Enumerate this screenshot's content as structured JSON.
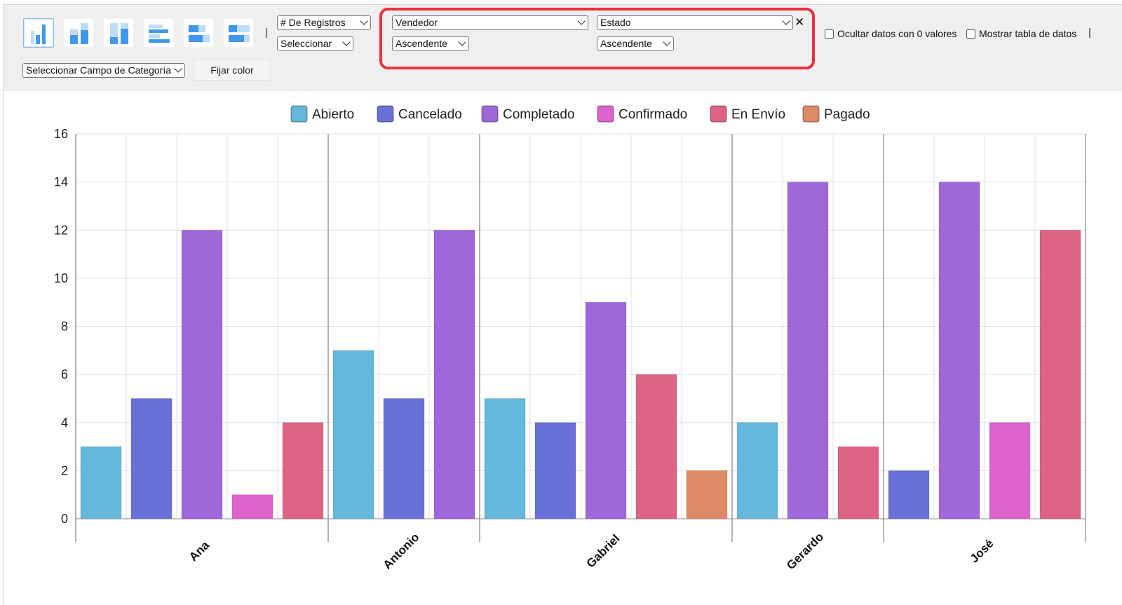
{
  "toolbar": {
    "chart_type_buttons": [
      {
        "icon": "vertical-bar-chart-icon",
        "active": true
      },
      {
        "icon": "stacked-column-chart-icon",
        "active": false
      },
      {
        "icon": "percent-stacked-column-chart-icon",
        "active": false
      },
      {
        "icon": "horizontal-bar-chart-icon",
        "active": false
      },
      {
        "icon": "stacked-horizontal-bar-chart-icon",
        "active": false
      },
      {
        "icon": "percent-stacked-horizontal-bar-chart-icon",
        "active": false
      }
    ],
    "separator": "|",
    "measure_select": "# De Registros",
    "aggregate_select": "Seleccionar",
    "category_field_select": "Seleccionar Campo de Categoría",
    "fix_color_label": "Fijar color",
    "group_field_1": "Vendedor",
    "group_order_1": "Ascendente",
    "group_field_2": "Estado",
    "group_order_2": "Ascendente",
    "remove_symbol": "✕",
    "hide_zero_label": "Ocultar datos con 0 valores",
    "show_table_label": "Mostrar tabla de datos",
    "hide_zero_checked": false,
    "show_table_checked": false
  },
  "colors": {
    "accent_highlight": "#e8313c",
    "Abierto": "#66b7dc",
    "Cancelado": "#6970d8",
    "Completado": "#a067da",
    "Confirmado": "#dd63cc",
    "En Envío": "#dd6484",
    "Pagado": "#dd8a67"
  },
  "chart_data": {
    "type": "bar",
    "title": "",
    "xlabel": "",
    "ylabel": "",
    "ylim": [
      0,
      16
    ],
    "yticks": [
      0,
      2,
      4,
      6,
      8,
      10,
      12,
      14,
      16
    ],
    "grid": true,
    "legend_position": "top",
    "series_names": [
      "Abierto",
      "Cancelado",
      "Completado",
      "Confirmado",
      "En Envío",
      "Pagado"
    ],
    "groups": [
      {
        "label": "Ana",
        "bars": [
          {
            "series": "Abierto",
            "value": 3
          },
          {
            "series": "Cancelado",
            "value": 5
          },
          {
            "series": "Completado",
            "value": 12
          },
          {
            "series": "Confirmado",
            "value": 1
          },
          {
            "series": "En Envío",
            "value": 4
          }
        ]
      },
      {
        "label": "Antonio",
        "bars": [
          {
            "series": "Abierto",
            "value": 7
          },
          {
            "series": "Cancelado",
            "value": 5
          },
          {
            "series": "Completado",
            "value": 12
          }
        ]
      },
      {
        "label": "Gabriel",
        "bars": [
          {
            "series": "Abierto",
            "value": 5
          },
          {
            "series": "Cancelado",
            "value": 4
          },
          {
            "series": "Completado",
            "value": 9
          },
          {
            "series": "En Envío",
            "value": 6
          },
          {
            "series": "Pagado",
            "value": 2
          }
        ]
      },
      {
        "label": "Gerardo",
        "bars": [
          {
            "series": "Abierto",
            "value": 4
          },
          {
            "series": "Completado",
            "value": 14
          },
          {
            "series": "En Envío",
            "value": 3
          }
        ]
      },
      {
        "label": "José",
        "bars": [
          {
            "series": "Cancelado",
            "value": 2
          },
          {
            "series": "Completado",
            "value": 14
          },
          {
            "series": "Confirmado",
            "value": 4
          },
          {
            "series": "En Envío",
            "value": 12
          }
        ]
      }
    ]
  }
}
